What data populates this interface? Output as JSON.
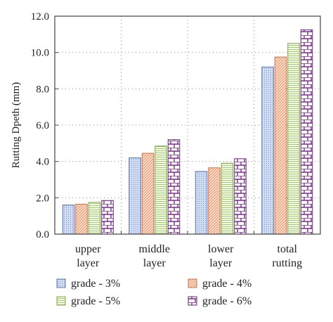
{
  "chart_data": {
    "type": "bar",
    "title": "",
    "xlabel": "",
    "ylabel": "Rutting Dpeth (mm)",
    "ylim": [
      0,
      12
    ],
    "yticks": [
      "0.0",
      "2.0",
      "4.0",
      "6.0",
      "8.0",
      "10.0",
      "12.0"
    ],
    "grid": true,
    "legend_position": "bottom",
    "categories": [
      [
        "upper",
        "layer"
      ],
      [
        "middle",
        "layer"
      ],
      [
        "lower",
        "layer"
      ],
      [
        "total",
        "rutting"
      ]
    ],
    "series": [
      {
        "name": "grade - 3%",
        "values": [
          1.6,
          4.2,
          3.45,
          9.2
        ],
        "color": "#9db3e0",
        "pattern": "dots"
      },
      {
        "name": "grade - 4%",
        "values": [
          1.65,
          4.45,
          3.65,
          9.75
        ],
        "color": "#f0b08c",
        "pattern": "diagonal"
      },
      {
        "name": "grade - 5%",
        "values": [
          1.75,
          4.85,
          3.9,
          10.5
        ],
        "color": "#cfe6a8",
        "pattern": "horizontal"
      },
      {
        "name": "grade - 6%",
        "values": [
          1.85,
          5.2,
          4.15,
          11.25
        ],
        "color": "#8a3a9a",
        "pattern": "brick"
      }
    ]
  }
}
